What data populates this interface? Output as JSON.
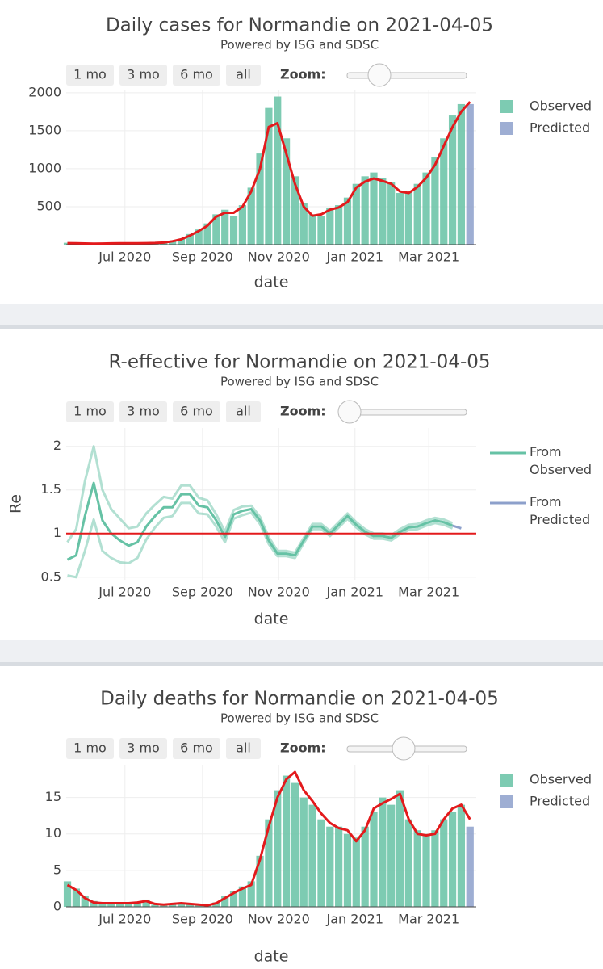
{
  "chart_data": [
    {
      "type": "bar",
      "title": "Daily cases for Normandie on 2021-04-05",
      "subtitle": "Powered by ISG and SDSC",
      "buttons": [
        "1 mo",
        "3 mo",
        "6 mo",
        "all"
      ],
      "zoom_label": "Zoom:",
      "x_label": "date",
      "xlim": [
        "2020-05-15",
        "2021-04-08"
      ],
      "xticks": [
        {
          "value": "2020-07-01",
          "label": "Jul 2020"
        },
        {
          "value": "2020-09-01",
          "label": "Sep 2020"
        },
        {
          "value": "2020-11-01",
          "label": "Nov 2020"
        },
        {
          "value": "2021-01-01",
          "label": "Jan 2021"
        },
        {
          "value": "2021-03-01",
          "label": "Mar 2021"
        }
      ],
      "ylim": [
        0,
        2030
      ],
      "yticks": [
        500,
        1000,
        1500,
        2000
      ],
      "grid": true,
      "x": [
        "2020-05-16",
        "2020-05-23",
        "2020-05-30",
        "2020-06-06",
        "2020-06-13",
        "2020-06-20",
        "2020-06-27",
        "2020-07-04",
        "2020-07-11",
        "2020-07-18",
        "2020-07-25",
        "2020-08-01",
        "2020-08-08",
        "2020-08-15",
        "2020-08-22",
        "2020-08-29",
        "2020-09-05",
        "2020-09-12",
        "2020-09-19",
        "2020-09-26",
        "2020-10-03",
        "2020-10-10",
        "2020-10-17",
        "2020-10-24",
        "2020-10-31",
        "2020-11-07",
        "2020-11-14",
        "2020-11-21",
        "2020-11-28",
        "2020-12-05",
        "2020-12-12",
        "2020-12-19",
        "2020-12-26",
        "2021-01-02",
        "2021-01-09",
        "2021-01-16",
        "2021-01-23",
        "2021-01-30",
        "2021-02-06",
        "2021-02-13",
        "2021-02-20",
        "2021-02-27",
        "2021-03-06",
        "2021-03-13",
        "2021-03-20",
        "2021-03-27",
        "2021-04-03"
      ],
      "series": [
        {
          "name": "Observed",
          "color": "#66c2a5",
          "values": [
            25,
            10,
            8,
            12,
            10,
            15,
            20,
            18,
            22,
            25,
            30,
            35,
            50,
            80,
            140,
            200,
            280,
            400,
            460,
            380,
            520,
            750,
            1200,
            1800,
            1950,
            1400,
            900,
            550,
            400,
            380,
            480,
            520,
            620,
            800,
            900,
            950,
            880,
            820,
            680,
            700,
            800,
            950,
            1150,
            1400,
            1700,
            1850,
            null
          ]
        },
        {
          "name": "Predicted",
          "color": "#8da0cb",
          "values": [
            null,
            null,
            null,
            null,
            null,
            null,
            null,
            null,
            null,
            null,
            null,
            null,
            null,
            null,
            null,
            null,
            null,
            null,
            null,
            null,
            null,
            null,
            null,
            null,
            null,
            null,
            null,
            null,
            null,
            null,
            null,
            null,
            null,
            null,
            null,
            null,
            null,
            null,
            null,
            null,
            null,
            null,
            null,
            null,
            null,
            null,
            1850
          ]
        }
      ],
      "trend": {
        "color": "#e31a1c",
        "values": [
          20,
          18,
          16,
          14,
          15,
          17,
          18,
          18,
          19,
          20,
          22,
          28,
          45,
          70,
          120,
          180,
          250,
          370,
          420,
          420,
          500,
          700,
          1000,
          1550,
          1600,
          1200,
          800,
          500,
          380,
          400,
          460,
          490,
          560,
          750,
          830,
          870,
          840,
          800,
          700,
          680,
          760,
          880,
          1050,
          1300,
          1550,
          1750,
          1880
        ]
      }
    },
    {
      "type": "line",
      "title": "R-effective for Normandie on 2021-04-05",
      "subtitle": "Powered by ISG and SDSC",
      "buttons": [
        "1 mo",
        "3 mo",
        "6 mo",
        "all"
      ],
      "zoom_label": "Zoom:",
      "x_label": "date",
      "y_label": "Re",
      "xlim": [
        "2020-05-15",
        "2021-04-08"
      ],
      "xticks": [
        {
          "value": "2020-07-01",
          "label": "Jul 2020"
        },
        {
          "value": "2020-09-01",
          "label": "Sep 2020"
        },
        {
          "value": "2020-11-01",
          "label": "Nov 2020"
        },
        {
          "value": "2021-01-01",
          "label": "Jan 2021"
        },
        {
          "value": "2021-03-01",
          "label": "Mar 2021"
        }
      ],
      "ylim": [
        0.47,
        2.21
      ],
      "yticks": [
        0.5,
        1,
        1.5,
        2
      ],
      "grid": true,
      "x": [
        "2020-05-16",
        "2020-05-23",
        "2020-05-30",
        "2020-06-06",
        "2020-06-13",
        "2020-06-20",
        "2020-06-27",
        "2020-07-04",
        "2020-07-11",
        "2020-07-18",
        "2020-07-25",
        "2020-08-01",
        "2020-08-08",
        "2020-08-15",
        "2020-08-22",
        "2020-08-29",
        "2020-09-05",
        "2020-09-12",
        "2020-09-19",
        "2020-09-26",
        "2020-10-03",
        "2020-10-10",
        "2020-10-17",
        "2020-10-24",
        "2020-10-31",
        "2020-11-07",
        "2020-11-14",
        "2020-11-21",
        "2020-11-28",
        "2020-12-05",
        "2020-12-12",
        "2020-12-19",
        "2020-12-26",
        "2021-01-02",
        "2021-01-09",
        "2021-01-16",
        "2021-01-23",
        "2021-01-30",
        "2021-02-06",
        "2021-02-13",
        "2021-02-20",
        "2021-02-27",
        "2021-03-06",
        "2021-03-13",
        "2021-03-20",
        "2021-03-27"
      ],
      "series": [
        {
          "name": "From Observed",
          "color": "#66c2a5",
          "values": [
            0.7,
            0.75,
            1.2,
            1.58,
            1.15,
            1.0,
            0.92,
            0.86,
            0.9,
            1.08,
            1.2,
            1.3,
            1.3,
            1.45,
            1.45,
            1.32,
            1.3,
            1.15,
            0.96,
            1.22,
            1.26,
            1.28,
            1.15,
            0.92,
            0.77,
            0.77,
            0.75,
            0.92,
            1.08,
            1.08,
            1.0,
            1.1,
            1.2,
            1.1,
            1.02,
            0.97,
            0.97,
            0.95,
            1.02,
            1.07,
            1.08,
            1.12,
            1.15,
            1.13,
            1.09,
            null
          ],
          "upper": [
            0.9,
            1.05,
            1.6,
            2.0,
            1.5,
            1.28,
            1.17,
            1.06,
            1.08,
            1.23,
            1.33,
            1.42,
            1.4,
            1.55,
            1.55,
            1.41,
            1.38,
            1.22,
            1.02,
            1.27,
            1.31,
            1.32,
            1.19,
            0.96,
            0.8,
            0.8,
            0.78,
            0.95,
            1.11,
            1.11,
            1.03,
            1.13,
            1.23,
            1.13,
            1.05,
            1.0,
            1.0,
            0.98,
            1.05,
            1.1,
            1.11,
            1.15,
            1.18,
            1.16,
            1.12,
            null
          ],
          "lower": [
            0.52,
            0.5,
            0.8,
            1.16,
            0.8,
            0.72,
            0.67,
            0.66,
            0.72,
            0.93,
            1.07,
            1.18,
            1.2,
            1.35,
            1.35,
            1.23,
            1.22,
            1.08,
            0.9,
            1.17,
            1.21,
            1.24,
            1.11,
            0.88,
            0.74,
            0.74,
            0.72,
            0.89,
            1.05,
            1.05,
            0.97,
            1.07,
            1.17,
            1.07,
            0.99,
            0.94,
            0.94,
            0.92,
            0.99,
            1.04,
            1.05,
            1.09,
            1.12,
            1.1,
            1.06,
            null
          ]
        },
        {
          "name": "From Predicted",
          "color": "#8da0cb",
          "values": [
            null,
            null,
            null,
            null,
            null,
            null,
            null,
            null,
            null,
            null,
            null,
            null,
            null,
            null,
            null,
            null,
            null,
            null,
            null,
            null,
            null,
            null,
            null,
            null,
            null,
            null,
            null,
            null,
            null,
            null,
            null,
            null,
            null,
            null,
            null,
            null,
            null,
            null,
            null,
            null,
            null,
            null,
            null,
            null,
            1.09,
            1.06
          ]
        }
      ],
      "hline": {
        "value": 1,
        "color": "#e31a1c"
      }
    },
    {
      "type": "bar",
      "title": "Daily deaths for Normandie on 2021-04-05",
      "subtitle": "Powered by ISG and SDSC",
      "buttons": [
        "1 mo",
        "3 mo",
        "6 mo",
        "all"
      ],
      "zoom_label": "Zoom:",
      "x_label": "date",
      "xlim": [
        "2020-05-15",
        "2021-04-08"
      ],
      "xticks": [
        {
          "value": "2020-07-01",
          "label": "Jul 2020"
        },
        {
          "value": "2020-09-01",
          "label": "Sep 2020"
        },
        {
          "value": "2020-11-01",
          "label": "Nov 2020"
        },
        {
          "value": "2021-01-01",
          "label": "Jan 2021"
        },
        {
          "value": "2021-03-01",
          "label": "Mar 2021"
        }
      ],
      "ylim": [
        0,
        19.5
      ],
      "yticks": [
        0,
        5,
        10,
        15
      ],
      "grid": true,
      "x": [
        "2020-05-16",
        "2020-05-23",
        "2020-05-30",
        "2020-06-06",
        "2020-06-13",
        "2020-06-20",
        "2020-06-27",
        "2020-07-04",
        "2020-07-11",
        "2020-07-18",
        "2020-07-25",
        "2020-08-01",
        "2020-08-08",
        "2020-08-15",
        "2020-08-22",
        "2020-08-29",
        "2020-09-05",
        "2020-09-12",
        "2020-09-19",
        "2020-09-26",
        "2020-10-03",
        "2020-10-10",
        "2020-10-17",
        "2020-10-24",
        "2020-10-31",
        "2020-11-07",
        "2020-11-14",
        "2020-11-21",
        "2020-11-28",
        "2020-12-05",
        "2020-12-12",
        "2020-12-19",
        "2020-12-26",
        "2021-01-02",
        "2021-01-09",
        "2021-01-16",
        "2021-01-23",
        "2021-01-30",
        "2021-02-06",
        "2021-02-13",
        "2021-02-20",
        "2021-02-27",
        "2021-03-06",
        "2021-03-13",
        "2021-03-20",
        "2021-03-27",
        "2021-04-03"
      ],
      "series": [
        {
          "name": "Observed",
          "color": "#66c2a5",
          "values": [
            3.5,
            2.5,
            1.5,
            0.8,
            0.5,
            0.6,
            0.4,
            0.6,
            0.5,
            1,
            0.3,
            0.3,
            0.5,
            0.4,
            0.5,
            0.3,
            0.2,
            0.6,
            1.5,
            2.2,
            2.8,
            3.5,
            7,
            12,
            16,
            18,
            17,
            15,
            14,
            12,
            11,
            11,
            10,
            9.5,
            11,
            13,
            15,
            14,
            16,
            12,
            10.5,
            10,
            10.5,
            12,
            13,
            14,
            null
          ]
        },
        {
          "name": "Predicted",
          "color": "#8da0cb",
          "values": [
            null,
            null,
            null,
            null,
            null,
            null,
            null,
            null,
            null,
            null,
            null,
            null,
            null,
            null,
            null,
            null,
            null,
            null,
            null,
            null,
            null,
            null,
            null,
            null,
            null,
            null,
            null,
            null,
            null,
            null,
            null,
            null,
            null,
            null,
            null,
            null,
            null,
            null,
            null,
            null,
            null,
            null,
            null,
            null,
            null,
            null,
            11
          ]
        }
      ],
      "trend": {
        "color": "#e31a1c",
        "values": [
          3,
          2.3,
          1.2,
          0.6,
          0.5,
          0.5,
          0.5,
          0.5,
          0.6,
          0.8,
          0.4,
          0.3,
          0.4,
          0.5,
          0.4,
          0.3,
          0.2,
          0.5,
          1.2,
          1.9,
          2.5,
          3,
          6.5,
          11,
          15,
          17.5,
          18.5,
          16,
          14.5,
          12.8,
          11.5,
          10.8,
          10.5,
          9,
          10.5,
          13.5,
          14.2,
          14.8,
          15.5,
          12,
          10,
          9.8,
          10,
          12,
          13.5,
          14,
          12
        ]
      }
    }
  ]
}
